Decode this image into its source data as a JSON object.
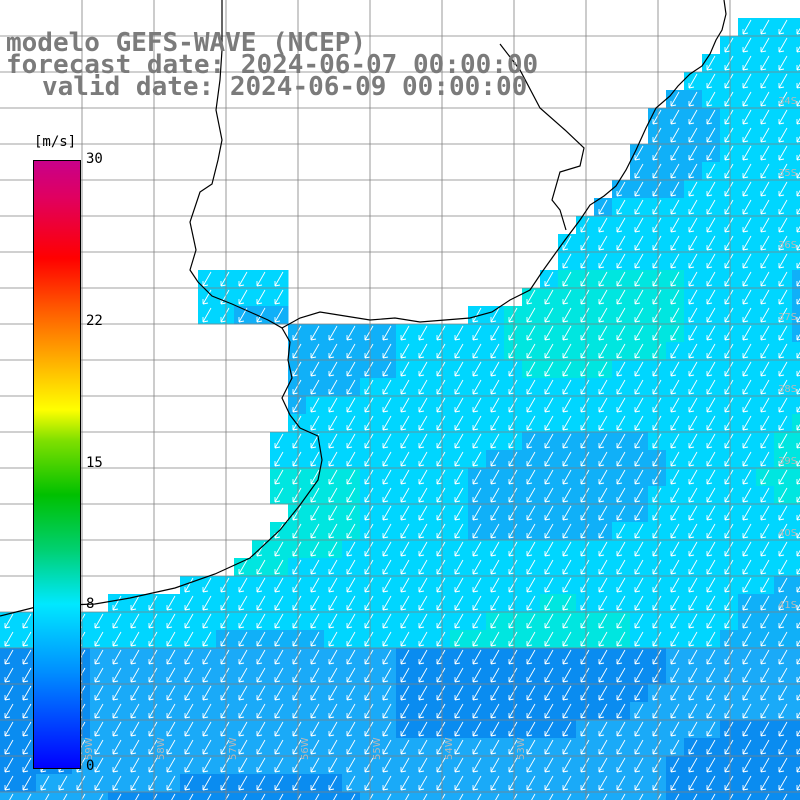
{
  "title": {
    "line1": "modelo GEFS-WAVE (NCEP)",
    "line2": "forecast date: 2024-06-07 00:00:00",
    "line3": "valid date: 2024-06-09 00:00:00"
  },
  "colorbar": {
    "unit": "[m/s]",
    "ticks": [
      {
        "value": 30,
        "label": "30"
      },
      {
        "value": 22,
        "label": "22"
      },
      {
        "value": 15,
        "label": "15"
      },
      {
        "value": 8,
        "label": "8"
      },
      {
        "value": 0,
        "label": "0"
      }
    ]
  },
  "lat_labels": [
    "34S",
    "35S",
    "36S",
    "37S",
    "38S",
    "39S",
    "40S",
    "41S"
  ],
  "lon_labels": [
    "59W",
    "58W",
    "57W",
    "56W",
    "55W",
    "54W",
    "53W"
  ],
  "colors": {
    "land": "#ffffff",
    "coast": "#000000",
    "grid": "#808080",
    "ocean_base": "#00d6ff",
    "ocean_dark": "#0a8cf0",
    "ocean_light": "#00e6e0",
    "arrow": "#ffffff"
  }
}
